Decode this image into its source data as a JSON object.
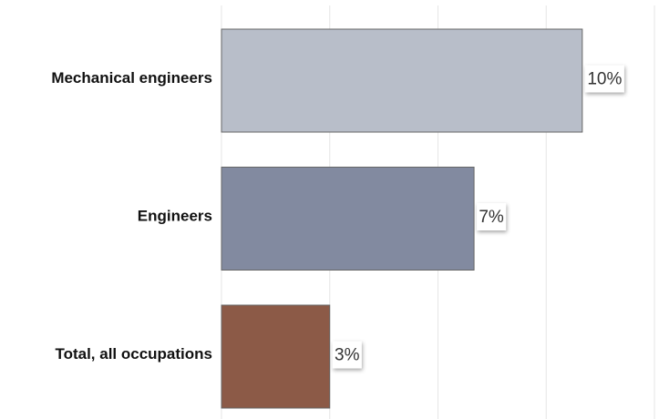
{
  "chart_data": {
    "type": "hbar",
    "categories": [
      "Mechanical engineers",
      "Engineers",
      "Total, all occupations"
    ],
    "values": [
      10,
      7,
      3
    ],
    "value_labels": [
      "10%",
      "7%",
      "3%"
    ],
    "colors": [
      "#b8bec9",
      "#828aa0",
      "#8c5a47"
    ],
    "xlim": [
      0,
      12
    ],
    "xticks": [
      0,
      3,
      6,
      9,
      12
    ],
    "grid": true
  }
}
